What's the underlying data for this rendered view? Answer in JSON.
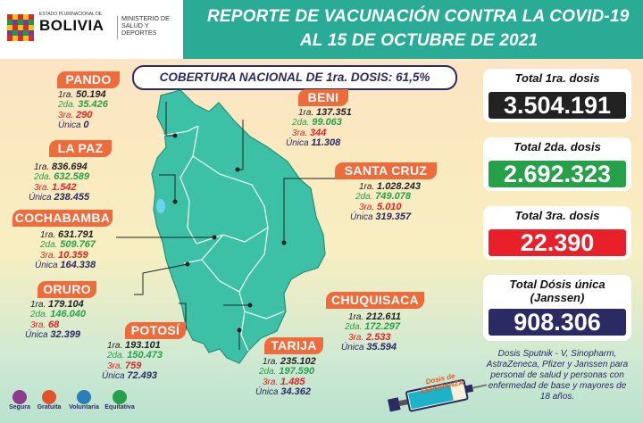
{
  "header": {
    "title_line1": "REPORTE DE VACUNACIÓN CONTRA LA COVID-19",
    "title_line2": "AL 15 DE OCTUBRE DE 2021",
    "logo_small": "ESTADO PLURINACIONAL DE",
    "logo_country": "BOLIVIA",
    "ministry": "MINISTERIO DE SALUD Y DEPORTES"
  },
  "cobertura": "COBERTURA NACIONAL DE 1ra. DOSIS: 61,5%",
  "labels": {
    "d1": "1ra.",
    "d2": "2da.",
    "d3": "3ra.",
    "du": "Única"
  },
  "regions": {
    "pando": {
      "name": "PANDO",
      "d1": "50.194",
      "d2": "35.426",
      "d3": "290",
      "du": "0"
    },
    "beni": {
      "name": "BENI",
      "d1": "137.351",
      "d2": "99.063",
      "d3": "344",
      "du": "11.308"
    },
    "lapaz": {
      "name": "LA PAZ",
      "d1": "836.694",
      "d2": "632.589",
      "d3": "1.542",
      "du": "238.455"
    },
    "santacruz": {
      "name": "SANTA CRUZ",
      "d1": "1.028.243",
      "d2": "749.078",
      "d3": "5.010",
      "du": "319.357"
    },
    "cochabamba": {
      "name": "COCHABAMBA",
      "d1": "631.791",
      "d2": "509.767",
      "d3": "10.359",
      "du": "164.338"
    },
    "oruro": {
      "name": "ORURO",
      "d1": "179.104",
      "d2": "146.040",
      "d3": "68",
      "du": "32.399"
    },
    "chuquisaca": {
      "name": "CHUQUISACA",
      "d1": "212.611",
      "d2": "172.297",
      "d3": "2.533",
      "du": "35.594"
    },
    "potosi": {
      "name": "POTOSÍ",
      "d1": "193.101",
      "d2": "150.473",
      "d3": "759",
      "du": "72.493"
    },
    "tarija": {
      "name": "TARIJA",
      "d1": "235.102",
      "d2": "197.590",
      "d3": "1.485",
      "du": "34.362"
    }
  },
  "totals": {
    "d1": {
      "label": "Total 1ra. dosis",
      "value": "3.504.191",
      "color": "#222222"
    },
    "d2": {
      "label": "Total 2da. dosis",
      "value": "2.692.323",
      "color": "#27a04a"
    },
    "d3": {
      "label": "Total 3ra. dosis",
      "value": "22.390",
      "color": "#e8202a"
    },
    "du_line1": "Total Dósis única",
    "du_line2": "(Janssen)",
    "du_value": "908.306",
    "du_color": "#2b2a63"
  },
  "note": "Dosis Sputnik - V, Sinopharm, AstraZeneca, Pfizer y Janssen para personal de salud y personas con enfermedad de base y mayores de 18 años.",
  "syringe_text": "Dosis de ESPERANZA",
  "footer": [
    {
      "label": "Segura",
      "icon": "shield-icon",
      "color": "#8e3b8e"
    },
    {
      "label": "Gratuita",
      "icon": "heart-icon",
      "color": "#e0522a"
    },
    {
      "label": "Voluntaria",
      "icon": "hand-icon",
      "color": "#2b7fb8"
    },
    {
      "label": "Equitativa",
      "icon": "scale-icon",
      "color": "#27a04a"
    }
  ],
  "colors": {
    "teal": "#2aab95",
    "navy": "#2b2a63",
    "orange": "#ee6b3b",
    "map_fill": "#3cc0a6"
  }
}
